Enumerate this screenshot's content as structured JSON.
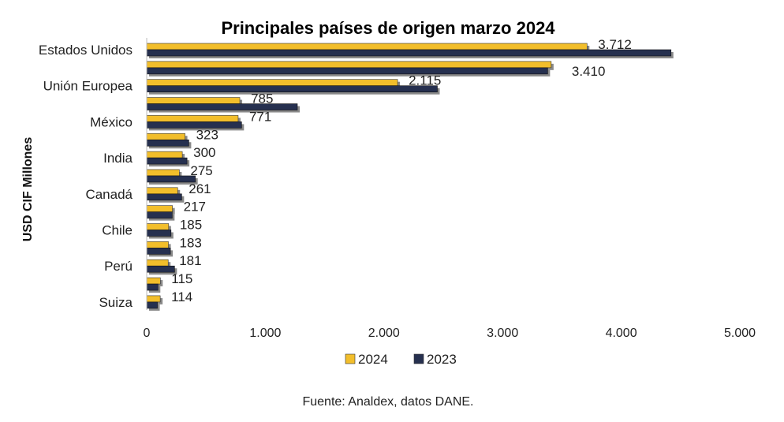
{
  "chart_data": {
    "type": "bar",
    "orientation": "horizontal",
    "title": "Principales países de origen marzo 2024",
    "ylabel": "USD CIF Millones",
    "xlabel": "",
    "source": "Fuente: Analdex, datos DANE.",
    "xlim": [
      0,
      5000
    ],
    "x_ticks": [
      "0",
      "1.000",
      "2.000",
      "3.000",
      "4.000",
      "5.000"
    ],
    "categories": [
      "Estados Unidos",
      "",
      "Unión Europea",
      "",
      "México",
      "",
      "India",
      "",
      "Canadá",
      "",
      "Chile",
      "",
      "Perú",
      "",
      "Suiza"
    ],
    "series": [
      {
        "name": "2024",
        "color": "#F2BE2B",
        "values": [
          3712,
          3410,
          2115,
          785,
          771,
          323,
          300,
          275,
          261,
          217,
          185,
          183,
          181,
          115,
          114
        ],
        "labels": [
          "3.712",
          "3.410",
          "2.115",
          "785",
          "771",
          "323",
          "300",
          "275",
          "261",
          "217",
          "185",
          "183",
          "181",
          "115",
          "114"
        ]
      },
      {
        "name": "2023",
        "color": "#26304F",
        "values": [
          4420,
          3380,
          2450,
          1270,
          800,
          355,
          340,
          410,
          295,
          215,
          205,
          200,
          235,
          95,
          90
        ]
      }
    ],
    "grid": false,
    "legend_position": "bottom"
  }
}
